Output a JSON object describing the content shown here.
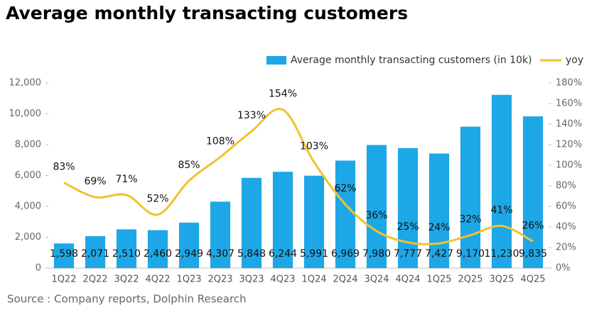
{
  "chart_data": {
    "type": "bar_line",
    "title": "Average monthly transacting customers",
    "source": "Source : Company reports, Dolphin Research",
    "categories": [
      "1Q22",
      "2Q22",
      "3Q22",
      "4Q22",
      "1Q23",
      "2Q23",
      "3Q23",
      "4Q23",
      "1Q24",
      "2Q24",
      "3Q24",
      "4Q24",
      "1Q25",
      "2Q25",
      "3Q25",
      "4Q25"
    ],
    "series": [
      {
        "name": "Average monthly transacting customers (in 10k)",
        "type": "bar",
        "color": "#1ea7e6",
        "values": [
          1598,
          2071,
          2510,
          2460,
          2949,
          4307,
          5848,
          6244,
          5991,
          6969,
          7980,
          7777,
          7427,
          9170,
          11230,
          9835
        ],
        "value_labels": [
          "1,598",
          "2,071",
          "2,510",
          "2,460",
          "2,949",
          "4,307",
          "5,848",
          "6,244",
          "5,991",
          "6,969",
          "7,980",
          "7,777",
          "7,427",
          "9,170",
          "11,230",
          "9,835"
        ]
      },
      {
        "name": "yoy",
        "type": "line",
        "axis": "y2",
        "color": "#f2c12e",
        "values": [
          83,
          69,
          71,
          52,
          85,
          108,
          133,
          154,
          103,
          62,
          36,
          25,
          24,
          32,
          41,
          26
        ],
        "value_labels": [
          "83%",
          "69%",
          "71%",
          "52%",
          "85%",
          "108%",
          "133%",
          "154%",
          "103%",
          "62%",
          "36%",
          "25%",
          "24%",
          "32%",
          "41%",
          "26%"
        ]
      }
    ],
    "ylim": [
      0,
      12000
    ],
    "yticks": [
      0,
      {
        "value": 2000,
        "label": "2,000"
      },
      {
        "value": 4000,
        "label": "4,000"
      },
      {
        "value": 6000,
        "label": "6,000"
      },
      {
        "value": 8000,
        "label": "8,000"
      },
      {
        "value": 10000,
        "label": "10,000"
      },
      {
        "value": 12000,
        "label": "12,000"
      }
    ],
    "y2lim": [
      0,
      180
    ],
    "y2ticks": [
      {
        "value": 0,
        "label": "0%"
      },
      {
        "value": 20,
        "label": "20%"
      },
      {
        "value": 40,
        "label": "40%"
      },
      {
        "value": 60,
        "label": "60%"
      },
      {
        "value": 80,
        "label": "80%"
      },
      {
        "value": 100,
        "label": "100%"
      },
      {
        "value": 120,
        "label": "120%"
      },
      {
        "value": 140,
        "label": "140%"
      },
      {
        "value": 160,
        "label": "160%"
      },
      {
        "value": 180,
        "label": "180%"
      }
    ],
    "legend": "top-right"
  }
}
